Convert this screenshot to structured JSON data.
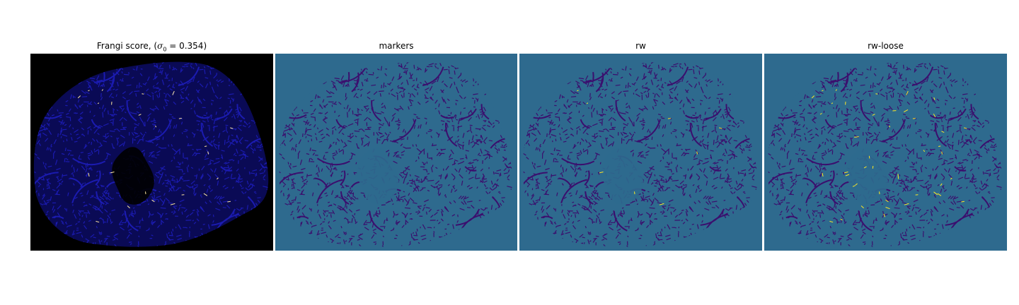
{
  "figure": {
    "panels": [
      {
        "id": "frangi",
        "title_prefix": "Frangi score, (",
        "title_symbol": "σ",
        "title_subscript": "0",
        "title_suffix": " = 0.354)",
        "background_color": "#000000",
        "tissue_color": "#0a0a55",
        "pattern_color": "#1b1bb0",
        "highlight_color": "#ffe9a0",
        "highlight_density": 0.12
      },
      {
        "id": "markers",
        "title": "markers",
        "background_color": "#2e6a8e",
        "tissue_color": "#2e6a8e",
        "pattern_color": "#3b0f6e",
        "highlight_color": "#fde725",
        "highlight_density": 0
      },
      {
        "id": "rw",
        "title": "rw",
        "background_color": "#2e6a8e",
        "tissue_color": "#2e6a8e",
        "pattern_color": "#3b0f6e",
        "highlight_color": "#fde725",
        "highlight_density": 0.04
      },
      {
        "id": "rw-loose",
        "title": "rw-loose",
        "background_color": "#2e6a8e",
        "tissue_color": "#2e6a8e",
        "pattern_color": "#3b0f6e",
        "highlight_color": "#fde725",
        "highlight_density": 0.22
      }
    ]
  }
}
